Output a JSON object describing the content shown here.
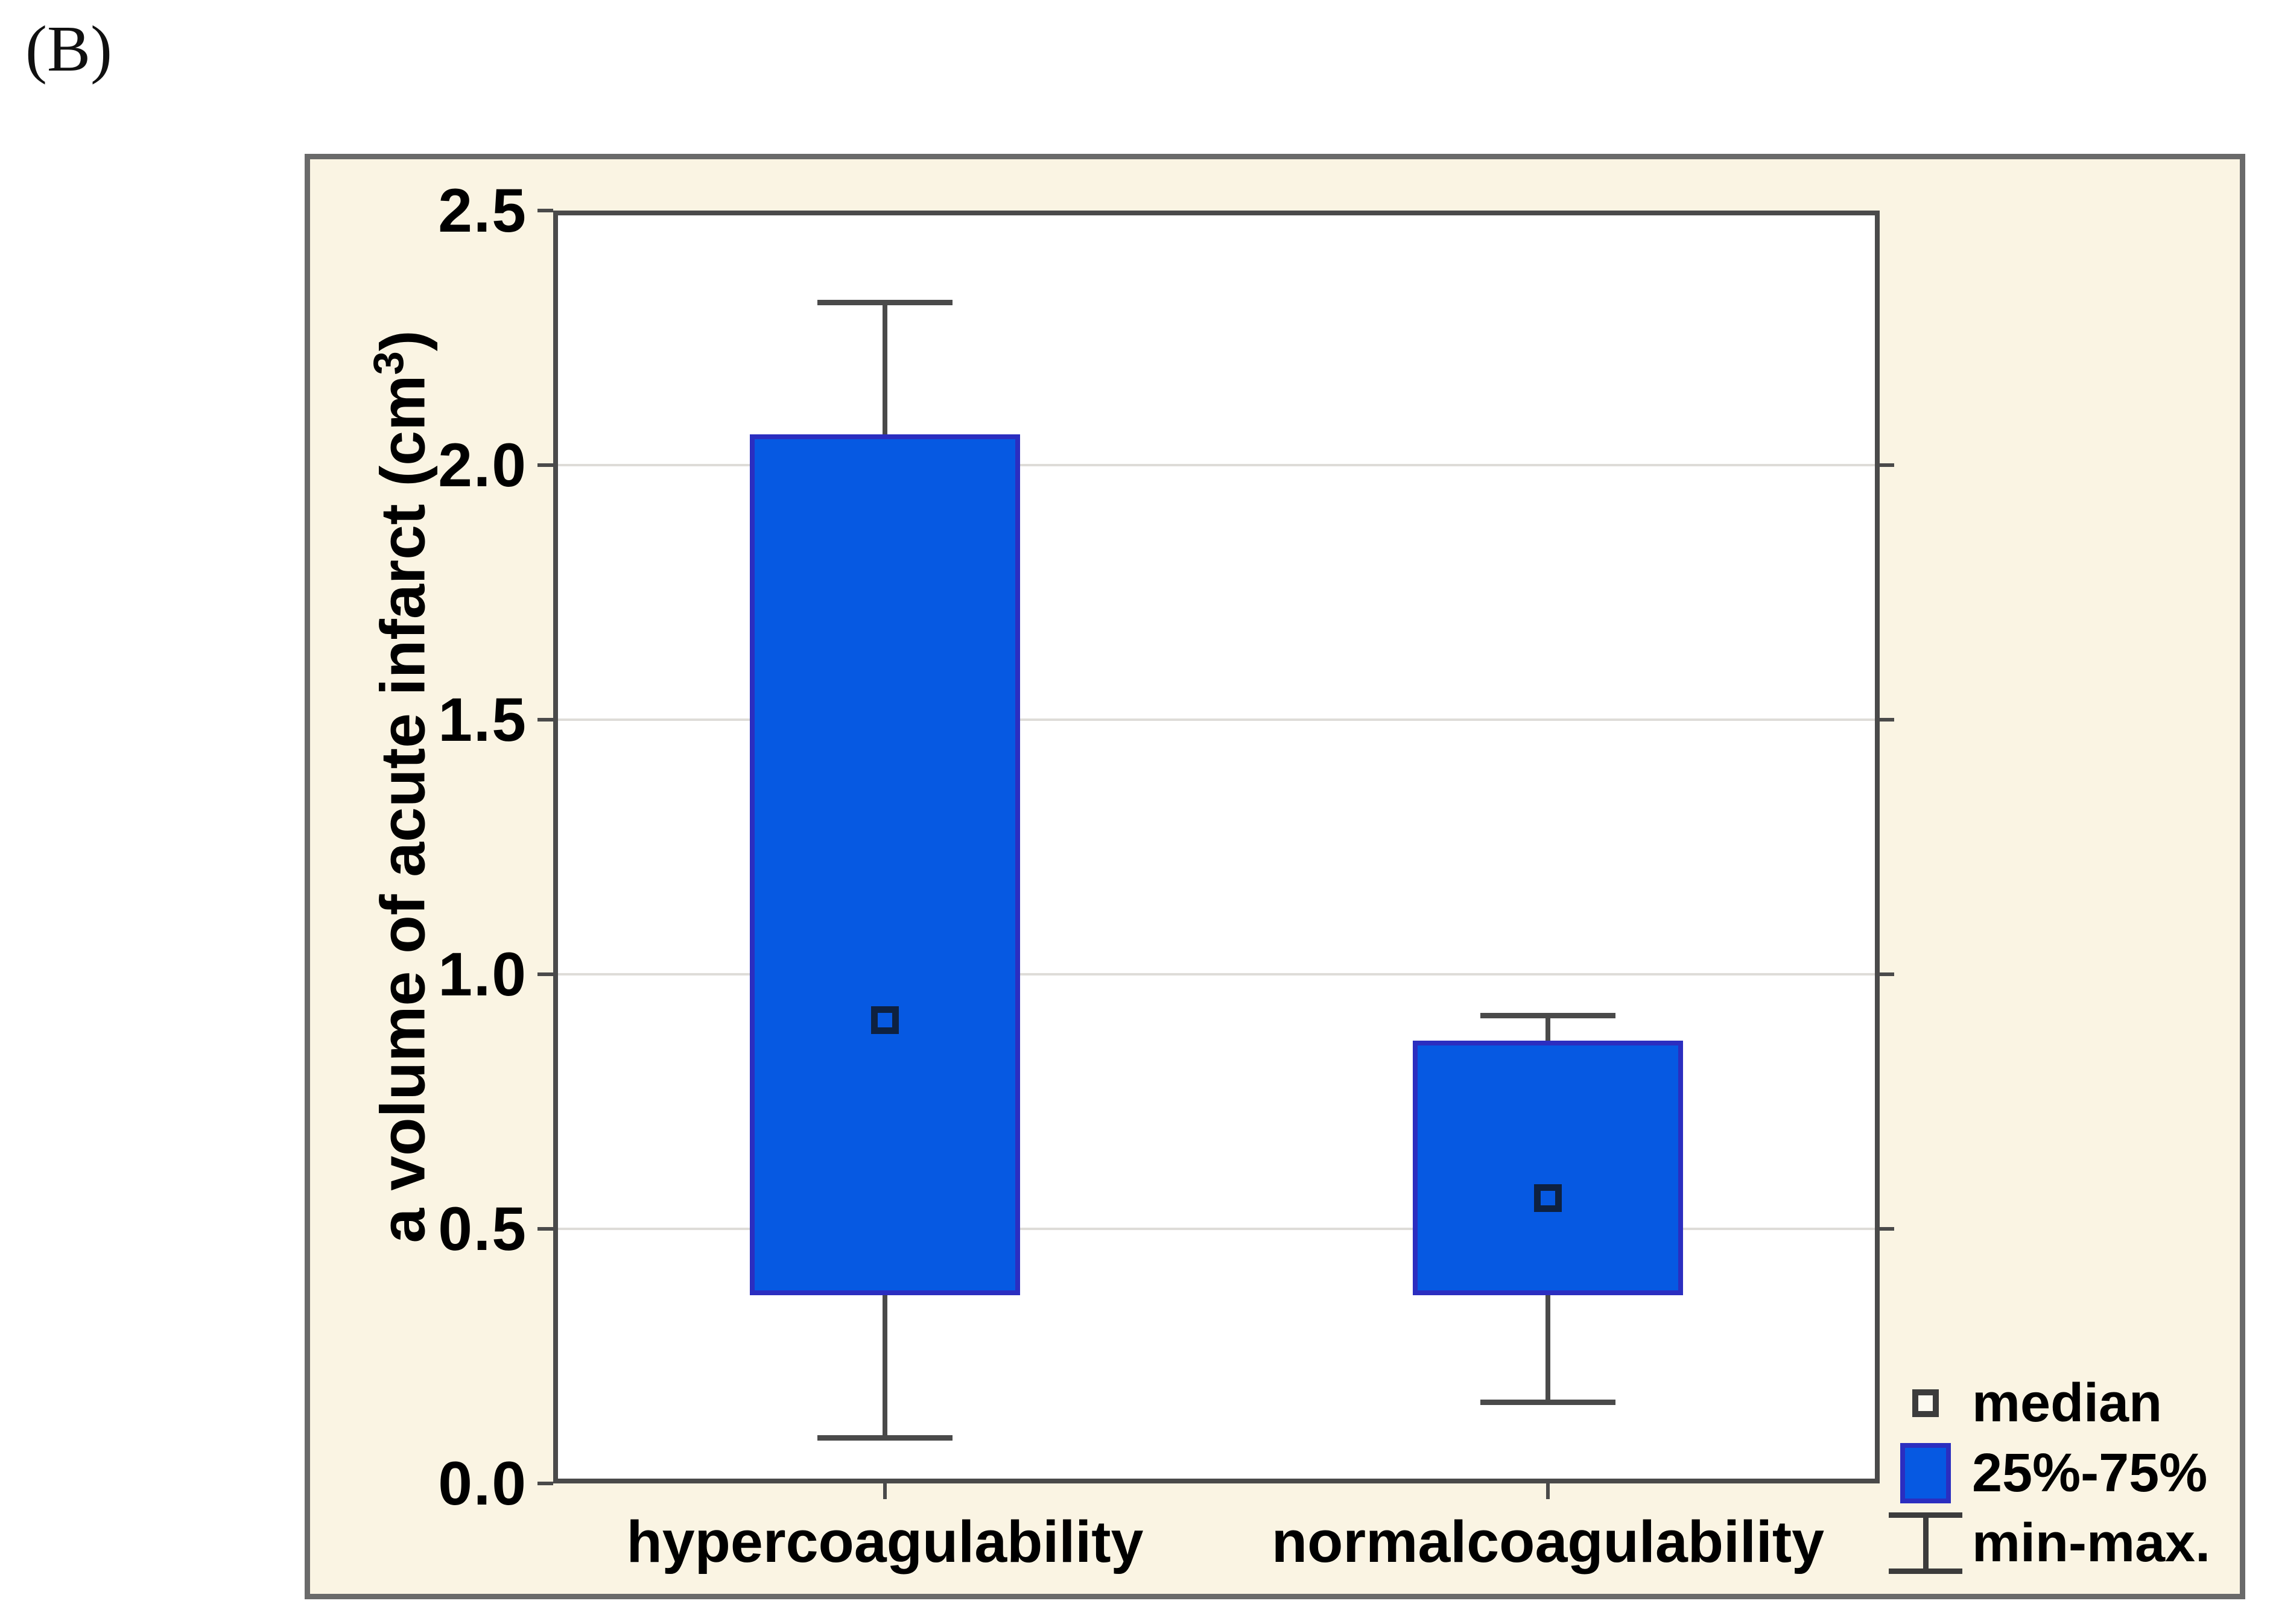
{
  "figure_label": "(B)",
  "chart_data": {
    "type": "box",
    "title": "",
    "xlabel": "",
    "ylabel": "a volume of acute infarct (cm³)",
    "ylabel_parts": {
      "prefix": "a volume of acute infarct (cm",
      "sup": "3",
      "suffix": ")"
    },
    "categories": [
      "hypercoagulability",
      "normalcoagulability"
    ],
    "ylim": [
      0.0,
      2.5
    ],
    "yticks": [
      "0.0",
      "0.5",
      "1.0",
      "1.5",
      "2.0",
      "2.5"
    ],
    "grid": "horizontal gridlines at interior ticks",
    "legend_position": "bottom-right",
    "series": [
      {
        "name": "hypercoagulability",
        "min": 0.09,
        "q1": 0.37,
        "median": 0.91,
        "q3": 2.06,
        "max": 2.32
      },
      {
        "name": "normalcoagulability",
        "min": 0.16,
        "q1": 0.37,
        "median": 0.56,
        "q3": 0.87,
        "max": 0.92
      }
    ],
    "legend": [
      {
        "marker": "median-square",
        "label": "median"
      },
      {
        "marker": "iqr-box",
        "label": "25%-75%"
      },
      {
        "marker": "min-max-whisker",
        "label": "min-max."
      }
    ]
  },
  "colors": {
    "panel_bg": "#FAF4E3",
    "panel_border": "#6A6A6A",
    "plot_bg": "#FFFFFF",
    "frame": "#4A4A4A",
    "gridline": "#DEDCD8",
    "box_fill": "#0659E2",
    "box_border": "#2B2EC0",
    "whisker": "#4A4A4A",
    "median_marker_border": "#0E2140",
    "text": "#000000"
  }
}
